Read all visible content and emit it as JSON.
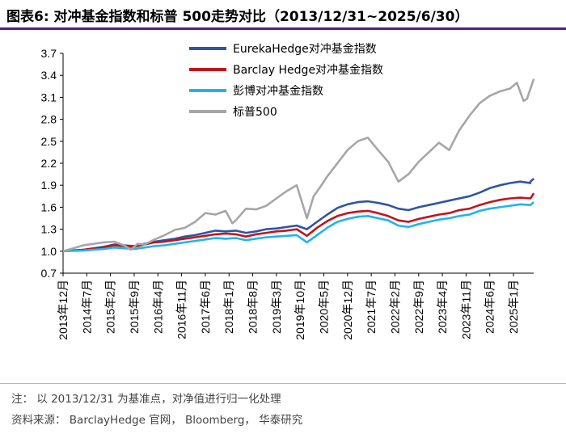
{
  "title": "图表6:  对冲基金指数和标普 500走势对比（2013/12/31~2025/6/30）",
  "footer": {
    "note": "注：  以 2013/12/31 为基准点，对净值进行归一化处理",
    "source": "资料来源：  BarclayHedge 官网，  Bloomberg，  华泰研究"
  },
  "chart_data": {
    "type": "line",
    "ylim": [
      0.7,
      3.7
    ],
    "yticks": [
      "3.7",
      "3.4",
      "3.1",
      "2.8",
      "2.5",
      "2.2",
      "1.9",
      "1.6",
      "1.3",
      "1.0",
      "0.7"
    ],
    "xtick_labels": [
      "2013年12月",
      "2014年7月",
      "2015年2月",
      "2015年9月",
      "2016年4月",
      "2016年11月",
      "2017年6月",
      "2018年1月",
      "2018年8月",
      "2019年3月",
      "2019年10月",
      "2020年5月",
      "2020年12月",
      "2021年7月",
      "2022年2月",
      "2022年9月",
      "2023年4月",
      "2023年11月",
      "2024年6月",
      "2025年1月"
    ],
    "legend_position": "top-center",
    "series": [
      {
        "name": "EurekaHedge对冲基金指数",
        "color": "#2f54a3",
        "points": [
          [
            0,
            1.0
          ],
          [
            6,
            1.02
          ],
          [
            12,
            1.06
          ],
          [
            15,
            1.09
          ],
          [
            18,
            1.08
          ],
          [
            21,
            1.07
          ],
          [
            24,
            1.1
          ],
          [
            27,
            1.13
          ],
          [
            30,
            1.15
          ],
          [
            33,
            1.17
          ],
          [
            36,
            1.2
          ],
          [
            39,
            1.22
          ],
          [
            42,
            1.25
          ],
          [
            45,
            1.28
          ],
          [
            48,
            1.27
          ],
          [
            51,
            1.28
          ],
          [
            54,
            1.25
          ],
          [
            57,
            1.27
          ],
          [
            60,
            1.3
          ],
          [
            63,
            1.31
          ],
          [
            66,
            1.33
          ],
          [
            69,
            1.35
          ],
          [
            72,
            1.3
          ],
          [
            75,
            1.4
          ],
          [
            78,
            1.5
          ],
          [
            81,
            1.59
          ],
          [
            84,
            1.64
          ],
          [
            87,
            1.67
          ],
          [
            90,
            1.68
          ],
          [
            93,
            1.66
          ],
          [
            96,
            1.63
          ],
          [
            99,
            1.58
          ],
          [
            102,
            1.56
          ],
          [
            105,
            1.6
          ],
          [
            108,
            1.63
          ],
          [
            111,
            1.66
          ],
          [
            114,
            1.69
          ],
          [
            117,
            1.72
          ],
          [
            120,
            1.75
          ],
          [
            123,
            1.8
          ],
          [
            126,
            1.86
          ],
          [
            129,
            1.9
          ],
          [
            132,
            1.93
          ],
          [
            135,
            1.95
          ],
          [
            138,
            1.93
          ],
          [
            138,
            1.95
          ],
          [
            139,
            1.99
          ]
        ]
      },
      {
        "name": "Barclay Hedge对冲基金指数",
        "color": "#c0151b",
        "points": [
          [
            0,
            1.0
          ],
          [
            6,
            1.02
          ],
          [
            12,
            1.05
          ],
          [
            15,
            1.08
          ],
          [
            18,
            1.07
          ],
          [
            21,
            1.06
          ],
          [
            24,
            1.09
          ],
          [
            27,
            1.12
          ],
          [
            30,
            1.13
          ],
          [
            33,
            1.15
          ],
          [
            36,
            1.17
          ],
          [
            39,
            1.19
          ],
          [
            42,
            1.21
          ],
          [
            45,
            1.23
          ],
          [
            48,
            1.24
          ],
          [
            51,
            1.23
          ],
          [
            54,
            1.2
          ],
          [
            57,
            1.23
          ],
          [
            60,
            1.25
          ],
          [
            63,
            1.27
          ],
          [
            66,
            1.28
          ],
          [
            69,
            1.3
          ],
          [
            72,
            1.21
          ],
          [
            75,
            1.32
          ],
          [
            78,
            1.41
          ],
          [
            81,
            1.48
          ],
          [
            84,
            1.52
          ],
          [
            87,
            1.54
          ],
          [
            90,
            1.55
          ],
          [
            93,
            1.52
          ],
          [
            96,
            1.48
          ],
          [
            99,
            1.42
          ],
          [
            102,
            1.4
          ],
          [
            105,
            1.44
          ],
          [
            108,
            1.47
          ],
          [
            111,
            1.5
          ],
          [
            114,
            1.52
          ],
          [
            117,
            1.56
          ],
          [
            120,
            1.58
          ],
          [
            123,
            1.63
          ],
          [
            126,
            1.67
          ],
          [
            129,
            1.7
          ],
          [
            132,
            1.72
          ],
          [
            135,
            1.73
          ],
          [
            138,
            1.72
          ],
          [
            139,
            1.79
          ]
        ]
      },
      {
        "name": "彭博对冲基金指数",
        "color": "#21b3ef",
        "points": [
          [
            0,
            1.0
          ],
          [
            6,
            1.01
          ],
          [
            12,
            1.03
          ],
          [
            15,
            1.05
          ],
          [
            18,
            1.04
          ],
          [
            21,
            1.03
          ],
          [
            24,
            1.05
          ],
          [
            27,
            1.07
          ],
          [
            30,
            1.08
          ],
          [
            33,
            1.1
          ],
          [
            36,
            1.12
          ],
          [
            39,
            1.14
          ],
          [
            42,
            1.16
          ],
          [
            45,
            1.18
          ],
          [
            48,
            1.17
          ],
          [
            51,
            1.18
          ],
          [
            54,
            1.15
          ],
          [
            57,
            1.17
          ],
          [
            60,
            1.19
          ],
          [
            63,
            1.2
          ],
          [
            66,
            1.21
          ],
          [
            69,
            1.22
          ],
          [
            72,
            1.12
          ],
          [
            75,
            1.22
          ],
          [
            78,
            1.32
          ],
          [
            81,
            1.4
          ],
          [
            84,
            1.44
          ],
          [
            87,
            1.47
          ],
          [
            90,
            1.48
          ],
          [
            93,
            1.45
          ],
          [
            96,
            1.42
          ],
          [
            99,
            1.35
          ],
          [
            102,
            1.33
          ],
          [
            105,
            1.37
          ],
          [
            108,
            1.4
          ],
          [
            111,
            1.43
          ],
          [
            114,
            1.45
          ],
          [
            117,
            1.48
          ],
          [
            120,
            1.5
          ],
          [
            123,
            1.55
          ],
          [
            126,
            1.58
          ],
          [
            129,
            1.6
          ],
          [
            132,
            1.62
          ],
          [
            135,
            1.64
          ],
          [
            138,
            1.63
          ],
          [
            139,
            1.67
          ]
        ]
      },
      {
        "name": "标普500",
        "color": "#a6a6a6",
        "points": [
          [
            0,
            1.0
          ],
          [
            3,
            1.04
          ],
          [
            6,
            1.08
          ],
          [
            9,
            1.1
          ],
          [
            12,
            1.12
          ],
          [
            15,
            1.13
          ],
          [
            18,
            1.08
          ],
          [
            20,
            1.02
          ],
          [
            22,
            1.1
          ],
          [
            24,
            1.09
          ],
          [
            27,
            1.16
          ],
          [
            30,
            1.22
          ],
          [
            33,
            1.29
          ],
          [
            36,
            1.32
          ],
          [
            39,
            1.4
          ],
          [
            42,
            1.52
          ],
          [
            45,
            1.5
          ],
          [
            48,
            1.55
          ],
          [
            50,
            1.38
          ],
          [
            51,
            1.42
          ],
          [
            54,
            1.58
          ],
          [
            57,
            1.57
          ],
          [
            60,
            1.62
          ],
          [
            63,
            1.72
          ],
          [
            66,
            1.82
          ],
          [
            69,
            1.9
          ],
          [
            72,
            1.45
          ],
          [
            74,
            1.75
          ],
          [
            76,
            1.88
          ],
          [
            78,
            2.02
          ],
          [
            81,
            2.2
          ],
          [
            84,
            2.38
          ],
          [
            87,
            2.5
          ],
          [
            90,
            2.55
          ],
          [
            93,
            2.38
          ],
          [
            96,
            2.22
          ],
          [
            99,
            1.95
          ],
          [
            102,
            2.05
          ],
          [
            105,
            2.22
          ],
          [
            108,
            2.35
          ],
          [
            111,
            2.48
          ],
          [
            114,
            2.38
          ],
          [
            117,
            2.65
          ],
          [
            120,
            2.85
          ],
          [
            123,
            3.02
          ],
          [
            126,
            3.12
          ],
          [
            129,
            3.18
          ],
          [
            132,
            3.22
          ],
          [
            134,
            3.3
          ],
          [
            136,
            3.05
          ],
          [
            137,
            3.08
          ],
          [
            139,
            3.35
          ]
        ]
      }
    ]
  }
}
